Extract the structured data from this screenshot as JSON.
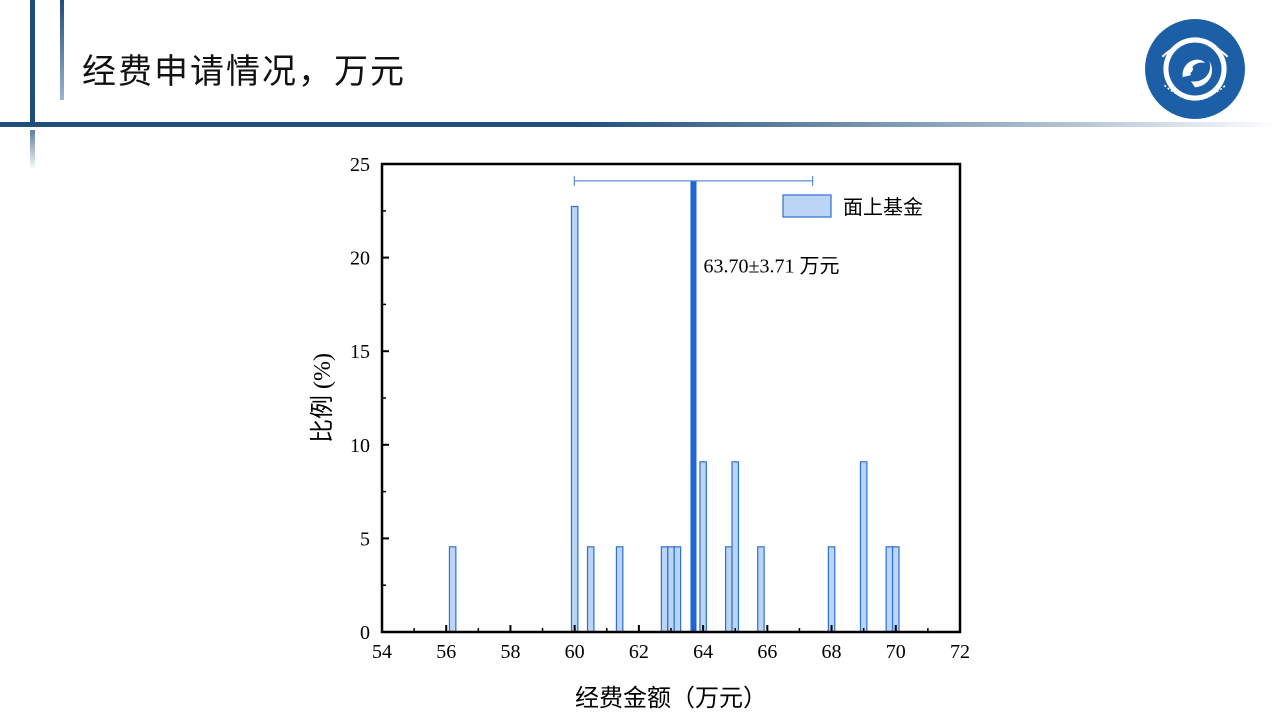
{
  "slide": {
    "title": "经费申请情况，万元"
  },
  "logo": {
    "name": "university-seal",
    "colors": {
      "ring": "#1d5fa6",
      "inner": "#ffffff"
    }
  },
  "colors": {
    "accent": "#1f4e79",
    "bar_fill": "#bcd4f5",
    "bar_stroke": "#2f6fd0",
    "mean_line": "#1f63d6"
  },
  "chart_data": {
    "type": "bar",
    "title": "",
    "xlabel": "经费金额（万元）",
    "ylabel": "比例 (%)",
    "xlim": [
      54,
      72
    ],
    "ylim": [
      0,
      25
    ],
    "xticks": [
      54,
      56,
      58,
      60,
      62,
      64,
      66,
      68,
      70,
      72
    ],
    "yticks": [
      0,
      5,
      10,
      15,
      20,
      25
    ],
    "bar_width": 0.2,
    "series": [
      {
        "name": "面上基金",
        "x": [
          56.2,
          60.0,
          60.5,
          61.4,
          62.8,
          63.0,
          63.2,
          64.0,
          64.8,
          65.0,
          65.8,
          68.0,
          69.0,
          69.8,
          70.0
        ],
        "values": [
          4.55,
          22.73,
          4.55,
          4.55,
          4.55,
          4.55,
          4.55,
          9.09,
          4.55,
          9.09,
          4.55,
          4.55,
          9.09,
          4.55,
          4.55
        ]
      }
    ],
    "mean": 63.7,
    "std": 3.71,
    "mean_label": "63.70±3.71 万元",
    "legend_position": "top-right",
    "grid": false
  }
}
